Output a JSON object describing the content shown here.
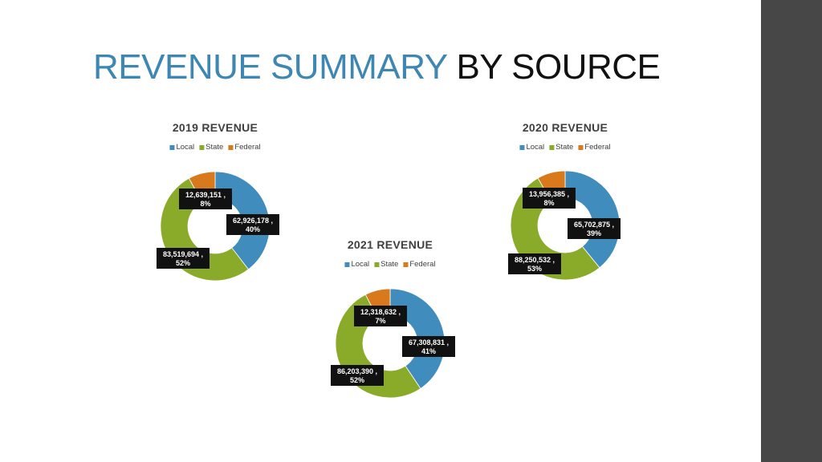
{
  "slide": {
    "title_accent": "REVENUE SUMMARY",
    "title_rest": " BY SOURCE"
  },
  "colors": {
    "accent": "#3e87b2",
    "sidebar": "#474747",
    "local": "#3f8cbd",
    "state": "#8aaa2a",
    "federal": "#d87a1c"
  },
  "chart_data": [
    {
      "type": "pie",
      "title": "2019 REVENUE",
      "categories": [
        "Local",
        "State",
        "Federal"
      ],
      "values": [
        62926178,
        83519694,
        12639151
      ],
      "labels": [
        {
          "value": "62,926,178 ,",
          "percent": "40%"
        },
        {
          "value": "83,519,694 ,",
          "percent": "52%"
        },
        {
          "value": "12,639,151 ,",
          "percent": "8%"
        }
      ],
      "legend": "top"
    },
    {
      "type": "pie",
      "title": "2020 REVENUE",
      "categories": [
        "Local",
        "State",
        "Federal"
      ],
      "values": [
        65702875,
        88250532,
        13956385
      ],
      "labels": [
        {
          "value": "65,702,875 ,",
          "percent": "39%"
        },
        {
          "value": "88,250,532 ,",
          "percent": "53%"
        },
        {
          "value": "13,956,385 ,",
          "percent": "8%"
        }
      ],
      "legend": "top"
    },
    {
      "type": "pie",
      "title": "2021 REVENUE",
      "categories": [
        "Local",
        "State",
        "Federal"
      ],
      "values": [
        67308831,
        86203390,
        12318632
      ],
      "labels": [
        {
          "value": "67,308,831 ,",
          "percent": "41%"
        },
        {
          "value": "86,203,390 ,",
          "percent": "52%"
        },
        {
          "value": "12,318,632 ,",
          "percent": "7%"
        }
      ],
      "legend": "top"
    }
  ]
}
